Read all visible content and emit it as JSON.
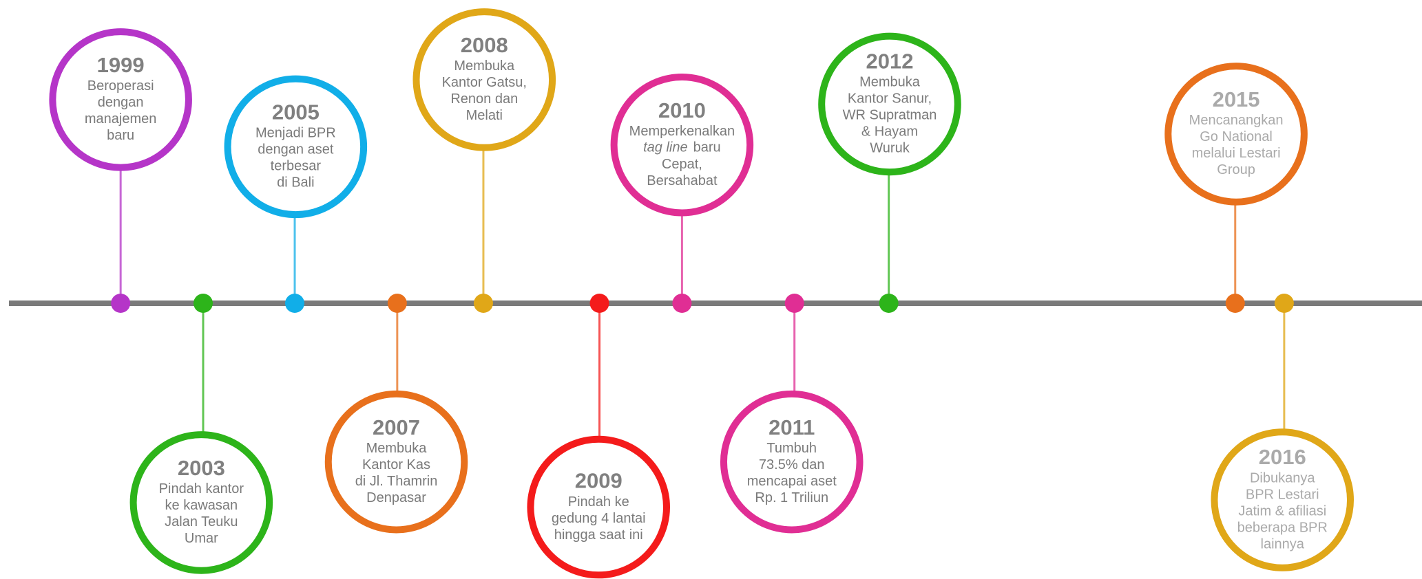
{
  "events": [
    {
      "year": "1999",
      "lines": [
        "Beroperasi",
        "dengan",
        "manajemen",
        "baru"
      ]
    },
    {
      "year": "2003",
      "lines": [
        "Pindah kantor",
        "ke kawasan",
        "Jalan Teuku",
        "Umar"
      ]
    },
    {
      "year": "2005",
      "lines": [
        "Menjadi BPR",
        "dengan aset",
        "terbesar",
        "di Bali"
      ]
    },
    {
      "year": "2007",
      "lines": [
        "Membuka",
        "Kantor Kas",
        "di Jl. Thamrin",
        "Denpasar"
      ]
    },
    {
      "year": "2008",
      "lines": [
        "Membuka",
        "Kantor Gatsu,",
        "Renon dan",
        "Melati"
      ]
    },
    {
      "year": "2009",
      "lines": [
        "Pindah ke",
        "gedung 4 lantai",
        "hingga saat ini"
      ]
    },
    {
      "year": "2010",
      "lines": [
        "Memperkenalkan",
        [
          "tag line",
          "baru"
        ],
        "Cepat,",
        "Bersahabat"
      ]
    },
    {
      "year": "2011",
      "lines": [
        "Tumbuh",
        "73.5% dan",
        "mencapai aset",
        "Rp. 1 Triliun"
      ]
    },
    {
      "year": "2012",
      "lines": [
        "Membuka",
        "Kantor Sanur,",
        "WR Supratman",
        "& Hayam",
        "Wuruk"
      ]
    },
    {
      "year": "2015",
      "lines": [
        "Mencanangkan",
        "Go National",
        "melalui Lestari",
        "Group"
      ]
    },
    {
      "year": "2016",
      "lines": [
        "Dibukanya",
        "BPR Lestari",
        "Jatim & afiliasi",
        "beberapa BPR",
        "lainnya"
      ]
    }
  ]
}
